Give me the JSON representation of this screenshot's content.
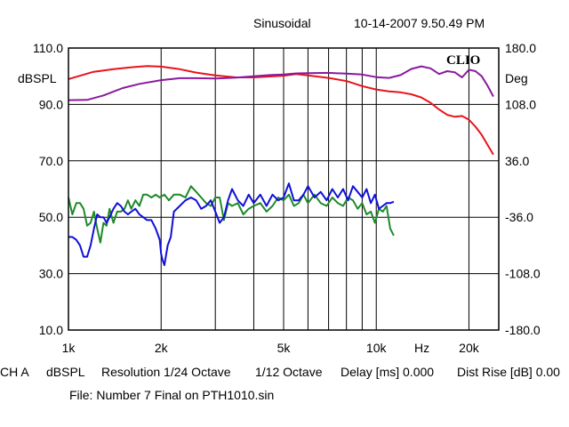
{
  "header": {
    "mode": "Sinusoidal",
    "timestamp": "10-14-2007 9.50.49 PM",
    "brand": "CLIO"
  },
  "footer": {
    "channel": "CH A",
    "units": "dBSPL",
    "resolution": "Resolution 1/24 Octave",
    "smoothing": "1/12 Octave",
    "delay": "Delay [ms] 0.000",
    "dist_rise": "Dist Rise [dB] 0.00",
    "file": "File: Number 7 Final on PTH1010.sin"
  },
  "colors": {
    "red": "#e8141c",
    "purple": "#8a1a9e",
    "green": "#1f8a2a",
    "blue": "#1010d8",
    "grid": "#000000"
  },
  "chart_data": {
    "type": "line",
    "xscale": "log",
    "xlim": [
      1000,
      25000
    ],
    "x_ticks": [
      {
        "v": 1000,
        "label": "1k"
      },
      {
        "v": 2000,
        "label": "2k"
      },
      {
        "v": 3000,
        "label": ""
      },
      {
        "v": 4000,
        "label": ""
      },
      {
        "v": 5000,
        "label": "5k"
      },
      {
        "v": 6000,
        "label": ""
      },
      {
        "v": 7000,
        "label": ""
      },
      {
        "v": 8000,
        "label": ""
      },
      {
        "v": 9000,
        "label": ""
      },
      {
        "v": 10000,
        "label": "10k"
      },
      {
        "v": 20000,
        "label": "20k"
      }
    ],
    "x_unit_label": "Hz",
    "ylabel_left": "dBSPL",
    "ylim_left": [
      10,
      110
    ],
    "yticks_left": [
      "110.0",
      "90.0",
      "70.0",
      "50.0",
      "30.0",
      "10.0"
    ],
    "ylabel_right": "Deg",
    "ylim_right": [
      -180,
      180
    ],
    "yticks_right": [
      "180.0",
      "108.0",
      "36.0",
      "-36.0",
      "-108.0",
      "-180.0"
    ],
    "series": [
      {
        "color": "red",
        "axis": "left",
        "x": [
          1000,
          1200,
          1400,
          1600,
          1800,
          2000,
          2300,
          2600,
          3000,
          3500,
          4000,
          4500,
          5000,
          5500,
          6000,
          7000,
          8000,
          9000,
          10000,
          11000,
          12000,
          13000,
          14000,
          15000,
          16000,
          17000,
          18000,
          19000,
          20000,
          21000,
          22000,
          23000,
          24000
        ],
        "values": [
          99,
          101.5,
          102.5,
          103.2,
          103.6,
          103.4,
          102.5,
          101.3,
          100.3,
          99.6,
          99.6,
          99.9,
          100.2,
          100.8,
          100.3,
          99.4,
          98.3,
          96.5,
          95.3,
          94.6,
          94.3,
          93.6,
          92.5,
          90.6,
          88.2,
          86.3,
          85.6,
          85.9,
          84.6,
          82.1,
          79.2,
          75.6,
          72.2
        ]
      },
      {
        "color": "purple",
        "axis": "left",
        "x": [
          1000,
          1150,
          1300,
          1500,
          1700,
          2000,
          2300,
          2600,
          3000,
          3500,
          4000,
          4500,
          5000,
          5500,
          6000,
          7000,
          8000,
          9000,
          10000,
          11000,
          12000,
          13000,
          14000,
          15000,
          16000,
          17000,
          18000,
          19000,
          20000,
          21000,
          22000,
          23000,
          24000
        ],
        "values": [
          91.5,
          91.6,
          93.2,
          95.8,
          97.3,
          98.6,
          99.3,
          99.3,
          99.2,
          99.5,
          100.0,
          100.4,
          100.6,
          101.0,
          101.1,
          101.2,
          100.9,
          100.6,
          99.7,
          99.4,
          100.4,
          102.6,
          103.5,
          102.8,
          100.8,
          101.8,
          101.4,
          99.6,
          102.3,
          101.8,
          100.0,
          96.6,
          92.8
        ]
      },
      {
        "color": "green",
        "axis": "left",
        "x": [
          1000,
          1030,
          1060,
          1090,
          1120,
          1150,
          1180,
          1210,
          1240,
          1270,
          1300,
          1330,
          1360,
          1400,
          1440,
          1480,
          1520,
          1560,
          1600,
          1650,
          1700,
          1750,
          1800,
          1860,
          1920,
          1980,
          2050,
          2120,
          2200,
          2300,
          2400,
          2500,
          2600,
          2700,
          2800,
          2900,
          3000,
          3100,
          3200,
          3300,
          3400,
          3550,
          3700,
          3850,
          4000,
          4200,
          4400,
          4600,
          4800,
          5000,
          5200,
          5400,
          5600,
          5800,
          6000,
          6300,
          6600,
          6900,
          7200,
          7500,
          7800,
          8100,
          8400,
          8700,
          9000,
          9300,
          9600,
          9900,
          10200,
          10500,
          10800,
          11100,
          11400
        ],
        "values": [
          57,
          51,
          55,
          55,
          53,
          47,
          48,
          52,
          46,
          41,
          48,
          47,
          53,
          48,
          52,
          52,
          53,
          56,
          53,
          56,
          54,
          58,
          58,
          57,
          58,
          57,
          58,
          56,
          58,
          58,
          57,
          61,
          59,
          57,
          55,
          54,
          57,
          57,
          49,
          55,
          54,
          55,
          51,
          53,
          54,
          55,
          52,
          54,
          57,
          56,
          58,
          54,
          55,
          58,
          55,
          58,
          55,
          54,
          57,
          55,
          54,
          57,
          56,
          53,
          55,
          51,
          52,
          48,
          53,
          52,
          54,
          46,
          43.5
        ]
      },
      {
        "color": "blue",
        "axis": "left",
        "x": [
          1000,
          1030,
          1060,
          1090,
          1120,
          1150,
          1180,
          1210,
          1240,
          1270,
          1300,
          1330,
          1360,
          1400,
          1440,
          1480,
          1520,
          1560,
          1600,
          1650,
          1700,
          1750,
          1800,
          1860,
          1920,
          1980,
          2000,
          2020,
          2050,
          2100,
          2150,
          2200,
          2300,
          2400,
          2500,
          2600,
          2700,
          2800,
          2900,
          3000,
          3100,
          3200,
          3300,
          3400,
          3550,
          3700,
          3850,
          4000,
          4200,
          4400,
          4600,
          4800,
          5000,
          5200,
          5400,
          5600,
          5800,
          6000,
          6300,
          6600,
          6900,
          7200,
          7500,
          7800,
          8100,
          8400,
          8700,
          9000,
          9300,
          9600,
          9900,
          10200,
          10500,
          10800,
          11100,
          11400
        ],
        "values": [
          43,
          43,
          42,
          40,
          36,
          36,
          40,
          46,
          51,
          50,
          50,
          48,
          50,
          53,
          55,
          54,
          52,
          51,
          52,
          53,
          51,
          50,
          49,
          49,
          46,
          42,
          37,
          35,
          33,
          40,
          43,
          52,
          54,
          56,
          57,
          56,
          53,
          54,
          56,
          52,
          48,
          50,
          56,
          60,
          56,
          54,
          58,
          55,
          58,
          54,
          58,
          56,
          57,
          62,
          56,
          56,
          58,
          61,
          57,
          59,
          56,
          60,
          57,
          60,
          56,
          61,
          59,
          57,
          60,
          55,
          58,
          53,
          54,
          55,
          55,
          55.5
        ]
      }
    ]
  }
}
